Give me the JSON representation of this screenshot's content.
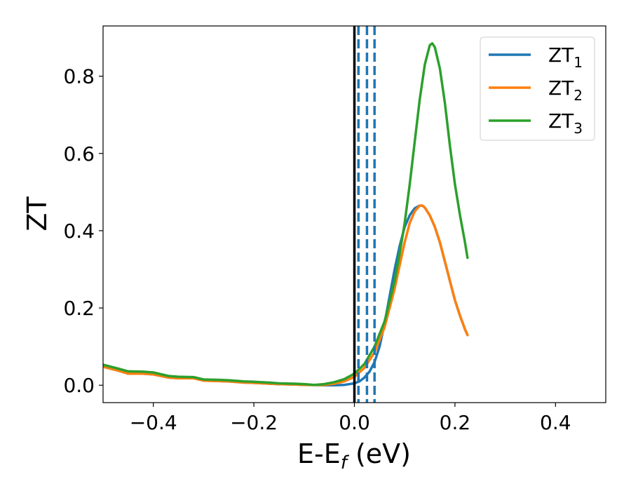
{
  "chart_data": {
    "type": "line",
    "xlabel": {
      "main": "E-E",
      "sub": "f",
      "tail": " (eV)"
    },
    "ylabel": "ZT",
    "xlim": [
      -0.5,
      0.5
    ],
    "ylim": [
      -0.045,
      0.93
    ],
    "x_ticks": [
      {
        "value": -0.4,
        "label": "−0.4"
      },
      {
        "value": -0.2,
        "label": "−0.2"
      },
      {
        "value": 0.0,
        "label": "0.0"
      },
      {
        "value": 0.2,
        "label": "0.2"
      },
      {
        "value": 0.4,
        "label": "0.4"
      }
    ],
    "y_ticks": [
      {
        "value": 0.0,
        "label": "0.0"
      },
      {
        "value": 0.2,
        "label": "0.2"
      },
      {
        "value": 0.4,
        "label": "0.4"
      },
      {
        "value": 0.6,
        "label": "0.6"
      },
      {
        "value": 0.8,
        "label": "0.8"
      }
    ],
    "grid": false,
    "legend_position": "top-right",
    "series": [
      {
        "name": "ZT",
        "name_sub": "1",
        "color": "#1f77b4",
        "x": [
          -0.5,
          -0.47,
          -0.45,
          -0.42,
          -0.4,
          -0.37,
          -0.35,
          -0.32,
          -0.3,
          -0.27,
          -0.25,
          -0.22,
          -0.2,
          -0.17,
          -0.15,
          -0.12,
          -0.1,
          -0.08,
          -0.06,
          -0.04,
          -0.02,
          0.0,
          0.01,
          0.02,
          0.03,
          0.04,
          0.05,
          0.06,
          0.07,
          0.08,
          0.09,
          0.1,
          0.11,
          0.12,
          0.13,
          0.135,
          0.14,
          0.15,
          0.16,
          0.17,
          0.18,
          0.19,
          0.2,
          0.21,
          0.22,
          0.225
        ],
        "y": [
          0.048,
          0.038,
          0.03,
          0.03,
          0.028,
          0.02,
          0.018,
          0.018,
          0.012,
          0.011,
          0.01,
          0.007,
          0.006,
          0.004,
          0.003,
          0.002,
          0.001,
          0.0005,
          0.0,
          0.0,
          0.001,
          0.005,
          0.01,
          0.02,
          0.035,
          0.06,
          0.1,
          0.16,
          0.23,
          0.3,
          0.36,
          0.41,
          0.44,
          0.458,
          0.465,
          0.465,
          0.46,
          0.44,
          0.41,
          0.37,
          0.32,
          0.27,
          0.22,
          0.18,
          0.145,
          0.13
        ]
      },
      {
        "name": "ZT",
        "name_sub": "2",
        "color": "#ff7f0e",
        "x": [
          -0.5,
          -0.47,
          -0.45,
          -0.42,
          -0.4,
          -0.37,
          -0.35,
          -0.32,
          -0.3,
          -0.27,
          -0.25,
          -0.22,
          -0.2,
          -0.17,
          -0.15,
          -0.12,
          -0.1,
          -0.08,
          -0.06,
          -0.04,
          -0.02,
          0.0,
          0.02,
          0.04,
          0.06,
          0.08,
          0.09,
          0.1,
          0.11,
          0.12,
          0.13,
          0.135,
          0.14,
          0.15,
          0.16,
          0.17,
          0.18,
          0.19,
          0.2,
          0.21,
          0.22,
          0.225
        ],
        "y": [
          0.048,
          0.038,
          0.03,
          0.03,
          0.028,
          0.02,
          0.018,
          0.018,
          0.012,
          0.011,
          0.01,
          0.007,
          0.006,
          0.004,
          0.003,
          0.002,
          0.001,
          0.0005,
          0.001,
          0.004,
          0.01,
          0.022,
          0.045,
          0.085,
          0.15,
          0.25,
          0.31,
          0.37,
          0.42,
          0.45,
          0.465,
          0.465,
          0.46,
          0.44,
          0.41,
          0.37,
          0.32,
          0.27,
          0.22,
          0.18,
          0.145,
          0.13
        ]
      },
      {
        "name": "ZT",
        "name_sub": "3",
        "color": "#2ca02c",
        "x": [
          -0.5,
          -0.47,
          -0.45,
          -0.42,
          -0.4,
          -0.37,
          -0.35,
          -0.32,
          -0.3,
          -0.27,
          -0.25,
          -0.22,
          -0.2,
          -0.17,
          -0.15,
          -0.12,
          -0.1,
          -0.08,
          -0.06,
          -0.04,
          -0.02,
          0.0,
          0.02,
          0.04,
          0.06,
          0.08,
          0.09,
          0.1,
          0.11,
          0.12,
          0.13,
          0.14,
          0.15,
          0.155,
          0.16,
          0.17,
          0.18,
          0.19,
          0.2,
          0.21,
          0.22,
          0.225
        ],
        "y": [
          0.053,
          0.043,
          0.036,
          0.035,
          0.033,
          0.024,
          0.022,
          0.021,
          0.015,
          0.014,
          0.013,
          0.01,
          0.009,
          0.007,
          0.005,
          0.004,
          0.003,
          0.001,
          0.003,
          0.008,
          0.016,
          0.03,
          0.055,
          0.1,
          0.165,
          0.27,
          0.34,
          0.42,
          0.52,
          0.63,
          0.74,
          0.83,
          0.88,
          0.885,
          0.875,
          0.82,
          0.73,
          0.62,
          0.52,
          0.44,
          0.37,
          0.33
        ]
      }
    ],
    "vertical_lines": [
      {
        "x": 0.0,
        "color": "#000000",
        "style": "solid"
      },
      {
        "x": 0.008,
        "color": "#1f77b4",
        "style": "dashed"
      },
      {
        "x": 0.025,
        "color": "#1f77b4",
        "style": "dashed"
      },
      {
        "x": 0.04,
        "color": "#1f77b4",
        "style": "dashed"
      }
    ]
  }
}
